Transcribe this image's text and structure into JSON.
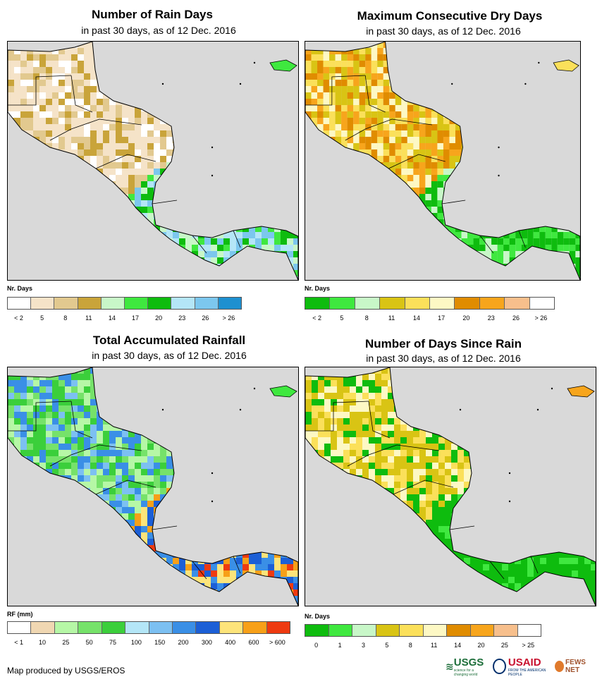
{
  "panels": [
    {
      "id": "rain_days",
      "title": "Number of Rain Days",
      "subtitle": "in past 30 days, as of 12 Dec. 2016",
      "units": "Nr. Days",
      "colors": [
        "#ffffff",
        "#f5e3c8",
        "#e2c98f",
        "#c9a43a",
        "#c8f7c8",
        "#3fe83f",
        "#0ebc0e",
        "#b4e6f7",
        "#7cc7ee",
        "#1e90d0"
      ],
      "ticks": [
        "< 2",
        "5",
        "8",
        "11",
        "14",
        "17",
        "20",
        "23",
        "26",
        "> 26"
      ]
    },
    {
      "id": "max_dry_days",
      "title": "Maximum Consecutive Dry Days",
      "subtitle": "in past 30 days, as of 12 Dec. 2016",
      "units": "Nr. Days",
      "colors": [
        "#0ebc0e",
        "#3fe83f",
        "#c8f7c8",
        "#d9c414",
        "#fbe05a",
        "#fdf8c4",
        "#e08c00",
        "#f7a51c",
        "#f7bf8c",
        "#ffffff"
      ],
      "ticks": [
        "< 2",
        "5",
        "8",
        "11",
        "14",
        "17",
        "20",
        "23",
        "26",
        "> 26"
      ]
    },
    {
      "id": "total_rainfall",
      "title": "Total Accumulated Rainfall",
      "subtitle": "in past 30 days, as of 12 Dec. 2016",
      "units": "RF (mm)",
      "colors": [
        "#ffffff",
        "#f0d7b2",
        "#b6f7a6",
        "#76e26a",
        "#3bcf3b",
        "#b4e6f7",
        "#7cc0f2",
        "#3a8fe6",
        "#1c5fd6",
        "#fde47a",
        "#f7a018",
        "#ee3a10"
      ],
      "ticks": [
        "< 1",
        "10",
        "25",
        "50",
        "75",
        "100",
        "150",
        "200",
        "300",
        "400",
        "600",
        "> 600"
      ]
    },
    {
      "id": "days_since_rain",
      "title": "Number of Days Since Rain",
      "subtitle": "in past 30 days, as of 12 Dec. 2016",
      "units": "Nr. Days",
      "colors": [
        "#0ebc0e",
        "#3fe83f",
        "#c8f7c8",
        "#d9c414",
        "#fbe05a",
        "#fdf8c4",
        "#e08c00",
        "#f7a51c",
        "#f7bf8c",
        "#ffffff"
      ],
      "ticks": [
        "0",
        "1",
        "3",
        "5",
        "8",
        "11",
        "14",
        "20",
        "25",
        "> 25"
      ]
    }
  ],
  "credit": "Map produced by USGS/EROS",
  "logos": {
    "usgs": "USGS",
    "usgs_tagline": "science for a changing world",
    "usaid": "USAID",
    "usaid_tagline": "FROM THE AMERICAN PEOPLE",
    "fews": "FEWS NET"
  }
}
